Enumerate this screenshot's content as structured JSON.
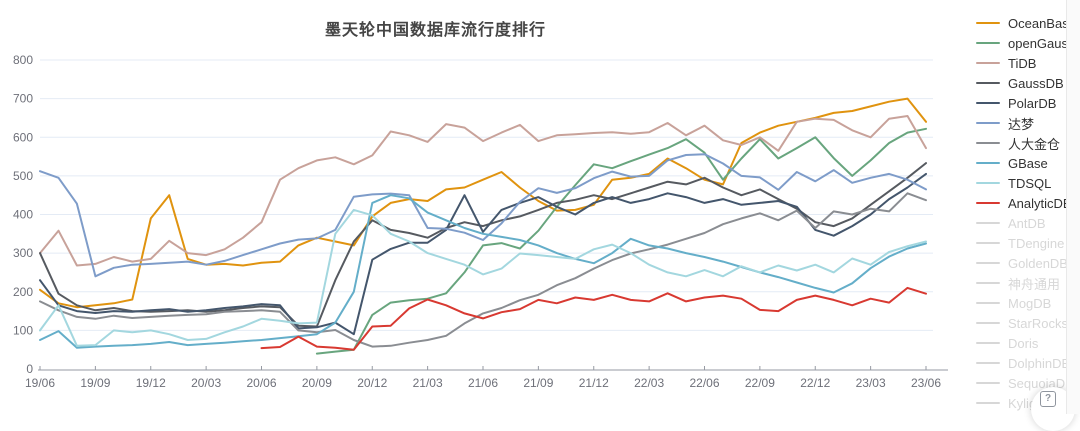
{
  "chart_data": {
    "type": "line",
    "title": "墨天轮中国数据库流行度排行",
    "xlabel": "",
    "ylabel": "",
    "ylim": [
      0,
      800
    ],
    "y_ticks": [
      0,
      100,
      200,
      300,
      400,
      500,
      600,
      700,
      800
    ],
    "grid": true,
    "legend_position": "right",
    "x": [
      "19/06",
      "19/07",
      "19/08",
      "19/09",
      "19/10",
      "19/11",
      "19/12",
      "20/01",
      "20/02",
      "20/03",
      "20/04",
      "20/05",
      "20/06",
      "20/07",
      "20/08",
      "20/09",
      "20/10",
      "20/11",
      "20/12",
      "21/01",
      "21/02",
      "21/03",
      "21/04",
      "21/05",
      "21/06",
      "21/07",
      "21/08",
      "21/09",
      "21/10",
      "21/11",
      "21/12",
      "22/01",
      "22/02",
      "22/03",
      "22/04",
      "22/05",
      "22/06",
      "22/07",
      "22/08",
      "22/09",
      "22/10",
      "22/11",
      "22/12",
      "23/01",
      "23/02",
      "23/03",
      "23/04",
      "23/05",
      "23/06"
    ],
    "x_tick_labels": [
      "19/06",
      "19/09",
      "19/12",
      "20/03",
      "20/06",
      "20/09",
      "20/12",
      "21/03",
      "21/06",
      "21/09",
      "21/12",
      "22/03",
      "22/06",
      "22/09",
      "22/12",
      "23/03",
      "23/06"
    ],
    "series": [
      {
        "name": "OceanBase",
        "color": "#e0930f",
        "values": [
          205,
          170,
          160,
          165,
          170,
          180,
          390,
          450,
          285,
          270,
          272,
          268,
          275,
          278,
          320,
          340,
          330,
          320,
          395,
          430,
          440,
          435,
          465,
          470,
          490,
          510,
          470,
          435,
          410,
          412,
          425,
          490,
          495,
          505,
          545,
          520,
          490,
          478,
          585,
          612,
          630,
          640,
          650,
          663,
          668,
          680,
          692,
          700,
          640
        ]
      },
      {
        "name": "openGauss",
        "color": "#68a57e",
        "values": [
          null,
          null,
          null,
          null,
          null,
          null,
          null,
          null,
          null,
          null,
          null,
          null,
          null,
          null,
          null,
          40,
          45,
          50,
          140,
          172,
          178,
          182,
          196,
          250,
          320,
          326,
          312,
          358,
          420,
          476,
          530,
          520,
          538,
          555,
          572,
          595,
          560,
          490,
          545,
          595,
          545,
          572,
          600,
          546,
          500,
          540,
          585,
          612,
          622
        ]
      },
      {
        "name": "TiDB",
        "color": "#c8a29a",
        "values": [
          300,
          358,
          268,
          272,
          290,
          278,
          285,
          332,
          300,
          295,
          310,
          340,
          380,
          490,
          520,
          540,
          548,
          530,
          553,
          615,
          605,
          588,
          634,
          625,
          590,
          612,
          632,
          590,
          605,
          608,
          611,
          613,
          609,
          613,
          637,
          605,
          630,
          592,
          580,
          600,
          565,
          640,
          648,
          645,
          618,
          600,
          648,
          655,
          572
        ]
      },
      {
        "name": "GaussDB",
        "color": "#565a60",
        "values": [
          300,
          195,
          165,
          152,
          158,
          150,
          148,
          150,
          152,
          148,
          152,
          158,
          162,
          160,
          112,
          110,
          230,
          330,
          385,
          360,
          352,
          340,
          365,
          380,
          370,
          385,
          395,
          412,
          430,
          438,
          450,
          440,
          455,
          470,
          485,
          478,
          495,
          470,
          450,
          465,
          440,
          415,
          380,
          370,
          390,
          425,
          460,
          495,
          533
        ]
      },
      {
        "name": "PolarDB",
        "color": "#44566c",
        "values": [
          230,
          165,
          150,
          145,
          150,
          148,
          152,
          155,
          148,
          152,
          158,
          162,
          168,
          165,
          105,
          108,
          120,
          90,
          283,
          311,
          327,
          327,
          360,
          450,
          355,
          412,
          430,
          445,
          420,
          400,
          430,
          445,
          430,
          440,
          455,
          445,
          430,
          440,
          425,
          430,
          435,
          420,
          360,
          345,
          370,
          400,
          440,
          470,
          505
        ]
      },
      {
        "name": "达梦",
        "color": "#7e9cc9",
        "values": [
          512,
          495,
          428,
          240,
          262,
          270,
          272,
          275,
          278,
          270,
          280,
          295,
          310,
          325,
          335,
          338,
          360,
          446,
          452,
          454,
          450,
          365,
          363,
          353,
          334,
          377,
          433,
          468,
          456,
          468,
          494,
          511,
          498,
          500,
          540,
          554,
          556,
          532,
          500,
          496,
          464,
          510,
          486,
          515,
          482,
          495,
          505,
          490,
          465
        ]
      },
      {
        "name": "人大金仓",
        "color": "#8a8d92",
        "values": [
          175,
          152,
          135,
          130,
          138,
          132,
          135,
          138,
          140,
          142,
          148,
          150,
          152,
          148,
          100,
          95,
          101,
          75,
          58,
          60,
          68,
          75,
          86,
          118,
          144,
          158,
          178,
          192,
          217,
          235,
          260,
          282,
          299,
          310,
          322,
          337,
          352,
          375,
          390,
          403,
          385,
          410,
          365,
          408,
          400,
          415,
          408,
          455,
          437
        ]
      },
      {
        "name": "GBase",
        "color": "#64aec9",
        "values": [
          75,
          98,
          55,
          58,
          60,
          62,
          65,
          70,
          62,
          65,
          68,
          72,
          75,
          80,
          85,
          90,
          120,
          200,
          430,
          450,
          442,
          405,
          385,
          365,
          350,
          342,
          334,
          320,
          300,
          285,
          274,
          300,
          337,
          320,
          312,
          300,
          290,
          278,
          264,
          250,
          238,
          224,
          210,
          198,
          222,
          261,
          291,
          312,
          325
        ]
      },
      {
        "name": "TDSQL",
        "color": "#a3d7df",
        "values": [
          100,
          165,
          60,
          62,
          100,
          95,
          100,
          90,
          75,
          78,
          95,
          110,
          130,
          125,
          118,
          120,
          350,
          412,
          398,
          350,
          330,
          300,
          285,
          270,
          245,
          260,
          299,
          295,
          290,
          285,
          310,
          322,
          300,
          270,
          250,
          240,
          256,
          240,
          266,
          250,
          268,
          255,
          270,
          250,
          286,
          270,
          303,
          318,
          330
        ]
      },
      {
        "name": "AnalyticDB",
        "color": "#d83931",
        "values": [
          null,
          null,
          null,
          null,
          null,
          null,
          null,
          null,
          null,
          null,
          null,
          null,
          54,
          57,
          84,
          58,
          55,
          50,
          110,
          112,
          157,
          180,
          165,
          144,
          131,
          147,
          155,
          179,
          170,
          185,
          179,
          192,
          179,
          175,
          196,
          175,
          185,
          190,
          182,
          153,
          150,
          179,
          190,
          179,
          165,
          182,
          172,
          210,
          195
        ]
      }
    ]
  },
  "legend": {
    "items": [
      {
        "label": "OceanBase",
        "color": "#e0930f",
        "active": true
      },
      {
        "label": "openGauss",
        "color": "#68a57e",
        "active": true
      },
      {
        "label": "TiDB",
        "color": "#c8a29a",
        "active": true
      },
      {
        "label": "GaussDB",
        "color": "#565a60",
        "active": true
      },
      {
        "label": "PolarDB",
        "color": "#44566c",
        "active": true
      },
      {
        "label": "达梦",
        "color": "#7e9cc9",
        "active": true
      },
      {
        "label": "人大金仓",
        "color": "#8a8d92",
        "active": true
      },
      {
        "label": "GBase",
        "color": "#64aec9",
        "active": true
      },
      {
        "label": "TDSQL",
        "color": "#a3d7df",
        "active": true
      },
      {
        "label": "AnalyticDB",
        "color": "#d83931",
        "active": true
      },
      {
        "label": "AntDB",
        "color": "#d7d7d7",
        "active": false
      },
      {
        "label": "TDengine",
        "color": "#d7d7d7",
        "active": false
      },
      {
        "label": "GoldenDB",
        "color": "#d7d7d7",
        "active": false
      },
      {
        "label": "神舟通用",
        "color": "#d7d7d7",
        "active": false
      },
      {
        "label": "MogDB",
        "color": "#d7d7d7",
        "active": false
      },
      {
        "label": "StarRocks",
        "color": "#d7d7d7",
        "active": false
      },
      {
        "label": "Doris",
        "color": "#d7d7d7",
        "active": false
      },
      {
        "label": "DolphinDB",
        "color": "#d7d7d7",
        "active": false
      },
      {
        "label": "SequoiaDB",
        "color": "#d7d7d7",
        "active": false
      },
      {
        "label": "Kyligence",
        "color": "#d7d7d7",
        "active": false
      }
    ]
  },
  "help_button": {
    "label": "?"
  },
  "style": {
    "grid_color": "#e4ebf5",
    "axis_color": "#969aa3",
    "tick_label_color": "#6e7079"
  }
}
